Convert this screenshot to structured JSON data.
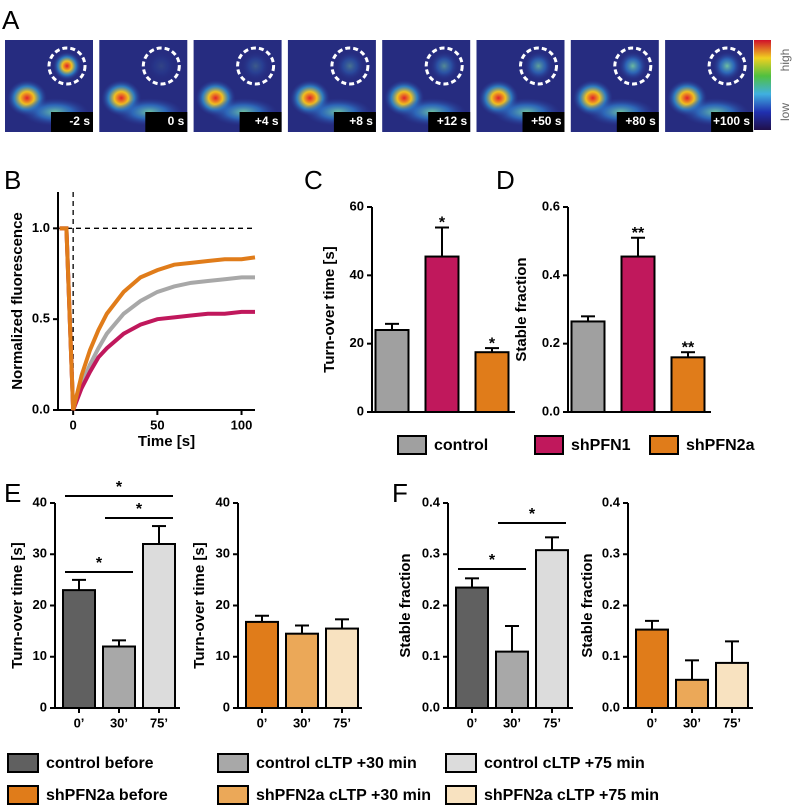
{
  "panel_labels": [
    "A",
    "B",
    "C",
    "D",
    "E",
    "F"
  ],
  "image_strip": {
    "timestamps": [
      "-2 s",
      "0 s",
      "+4 s",
      "+8 s",
      "+12 s",
      "+50 s",
      "+80 s",
      "+100 s"
    ],
    "colorbar_labels": [
      "high",
      "low"
    ]
  },
  "chart_data": [
    {
      "type": "line",
      "xlabel": "Time [s]",
      "ylabel": "Normalized fluorescence",
      "x": [
        -8,
        -4,
        0,
        5,
        10,
        15,
        20,
        30,
        40,
        50,
        60,
        70,
        80,
        90,
        100,
        108
      ],
      "series": [
        {
          "color": "#a8a8a8",
          "values": [
            1.0,
            1.0,
            0.0,
            0.14,
            0.25,
            0.34,
            0.42,
            0.53,
            0.6,
            0.65,
            0.68,
            0.7,
            0.71,
            0.72,
            0.73,
            0.73
          ]
        },
        {
          "color": "#c0185c",
          "values": [
            1.0,
            1.0,
            0.0,
            0.12,
            0.21,
            0.29,
            0.34,
            0.42,
            0.47,
            0.5,
            0.51,
            0.52,
            0.53,
            0.53,
            0.54,
            0.54
          ]
        },
        {
          "color": "#e07c1a",
          "values": [
            1.0,
            1.0,
            0.0,
            0.19,
            0.33,
            0.44,
            0.53,
            0.65,
            0.73,
            0.77,
            0.8,
            0.81,
            0.82,
            0.83,
            0.83,
            0.84
          ]
        }
      ],
      "xlim": [
        -9,
        108
      ],
      "xticks": [
        0,
        50,
        100
      ],
      "ylim": [
        0,
        1.2
      ],
      "yticks": [
        {
          "value": 0,
          "label": "0.0"
        },
        0.5,
        {
          "value": 1,
          "label": "1.0"
        }
      ],
      "hline": 1,
      "vline": 0
    },
    {
      "type": "bar",
      "ylabel": "Turn-over time [s]",
      "categories": [
        "control",
        "shPFN1",
        "shPFN2a"
      ],
      "values": [
        24,
        45.5,
        17.5
      ],
      "errors": [
        1.8,
        8.5,
        1.2
      ],
      "significance": [
        null,
        "*",
        "*"
      ],
      "colors": [
        "#a0a0a0",
        "#c0185c",
        "#e07c1a"
      ],
      "ylim": [
        0,
        60
      ],
      "yticks": [
        0,
        20,
        40,
        60
      ]
    },
    {
      "type": "bar",
      "ylabel": "Stable fraction",
      "values": [
        0.265,
        0.455,
        0.16
      ],
      "errors": [
        0.015,
        0.055,
        0.015
      ],
      "significance": [
        null,
        "**",
        "**"
      ],
      "colors": [
        "#a0a0a0",
        "#c0185c",
        "#e07c1a"
      ],
      "ylim": [
        0,
        0.6
      ],
      "yticks": [
        {
          "value": 0,
          "label": "0.0"
        },
        0.2,
        0.4,
        0.6
      ]
    },
    {
      "type": "bar",
      "ylabel": "Turn-over time [s]",
      "categories": [
        "0’",
        "30’",
        "75’"
      ],
      "series_names": [
        "control before",
        "control cLTP +30 min",
        "control cLTP +75 min"
      ],
      "values": [
        23,
        12,
        32
      ],
      "errors": [
        2,
        1.2,
        3.5
      ],
      "comparisons": [
        {
          "pair": [
            0,
            1
          ],
          "label": "*"
        },
        {
          "pair": [
            1,
            2
          ],
          "label": "*"
        },
        {
          "pair": [
            0,
            2
          ],
          "label": "*"
        }
      ],
      "colors": [
        "#606060",
        "#a8a8a8",
        "#dcdcdc"
      ],
      "ylim": [
        0,
        40
      ],
      "yticks": [
        0,
        10,
        20,
        30,
        40
      ]
    },
    {
      "type": "bar",
      "ylabel": "Turn-over time [s]",
      "categories": [
        "0’",
        "30’",
        "75’"
      ],
      "series_names": [
        "shPFN2a before",
        "shPFN2a cLTP +30 min",
        "shPFN2a cLTP +75 min"
      ],
      "values": [
        16.8,
        14.5,
        15.5
      ],
      "errors": [
        1.2,
        1.6,
        1.8
      ],
      "colors": [
        "#e07c1a",
        "#eba858",
        "#f8e2c0"
      ],
      "ylim": [
        0,
        40
      ],
      "yticks": [
        0,
        10,
        20,
        30,
        40
      ]
    },
    {
      "type": "bar",
      "ylabel": "Stable fraction",
      "categories": [
        "0’",
        "30’",
        "75’"
      ],
      "values": [
        0.235,
        0.11,
        0.308
      ],
      "errors": [
        0.018,
        0.05,
        0.025
      ],
      "comparisons": [
        {
          "pair": [
            0,
            1
          ],
          "label": "*"
        },
        {
          "pair": [
            1,
            2
          ],
          "label": "*"
        }
      ],
      "colors": [
        "#606060",
        "#a8a8a8",
        "#dcdcdc"
      ],
      "ylim": [
        0,
        0.4
      ],
      "yticks": [
        {
          "value": 0,
          "label": "0.0"
        },
        0.1,
        0.2,
        0.3,
        0.4
      ]
    },
    {
      "type": "bar",
      "ylabel": "Stable fraction",
      "categories": [
        "0’",
        "30’",
        "75’"
      ],
      "values": [
        0.153,
        0.055,
        0.088
      ],
      "errors": [
        0.017,
        0.038,
        0.042
      ],
      "colors": [
        "#e07c1a",
        "#eba858",
        "#f8e2c0"
      ],
      "ylim": [
        0,
        0.4
      ],
      "yticks": [
        {
          "value": 0,
          "label": "0.0"
        },
        0.1,
        0.2,
        0.3,
        0.4
      ]
    }
  ]
}
